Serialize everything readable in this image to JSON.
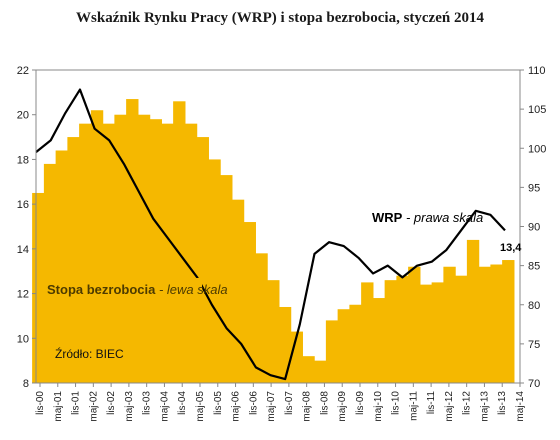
{
  "chart_data": {
    "type": "bar+line",
    "title": "Wskaźnik Rynku Pracy (WRP) i stopa bezrobocia, styczeń 2014",
    "x_labels": [
      "lis-00",
      "maj-01",
      "lis-01",
      "maj-02",
      "lis-02",
      "maj-03",
      "lis-03",
      "maj-04",
      "lis-04",
      "maj-05",
      "lis-05",
      "maj-06",
      "lis-06",
      "maj-07",
      "lis-07",
      "maj-08",
      "lis-08",
      "maj-09",
      "lis-09",
      "maj-10",
      "lis-10",
      "maj-11",
      "lis-11",
      "maj-12",
      "lis-12",
      "maj-13",
      "lis-13",
      "maj-14"
    ],
    "y_left": {
      "min": 8,
      "max": 22,
      "ticks": [
        8,
        10,
        12,
        14,
        16,
        18,
        20,
        22
      ]
    },
    "y_right": {
      "min": 70,
      "max": 110,
      "ticks": [
        70,
        75,
        80,
        85,
        90,
        95,
        100,
        105,
        110
      ]
    },
    "series": [
      {
        "name": "Stopa bezrobocia",
        "axis": "left",
        "kind": "bar",
        "color": "#f5b800",
        "values": [
          16.5,
          17.8,
          18.4,
          19.0,
          19.6,
          20.2,
          19.6,
          20.0,
          20.7,
          20.0,
          19.8,
          19.6,
          20.6,
          19.6,
          19.0,
          18.0,
          17.3,
          16.2,
          15.2,
          13.8,
          12.6,
          11.4,
          10.3,
          9.2,
          9.0,
          10.8,
          11.3,
          11.5,
          12.5,
          11.8,
          12.6,
          12.8,
          13.2,
          12.4,
          12.5,
          13.2,
          12.8,
          14.4,
          13.2,
          13.3,
          13.5
        ]
      },
      {
        "name": "WRP",
        "axis": "right",
        "kind": "line",
        "color": "#000000",
        "values": [
          99.5,
          101,
          104.5,
          107.5,
          102.5,
          101,
          98,
          94.5,
          91,
          88.5,
          86,
          83.5,
          80,
          77,
          75,
          72,
          71,
          70.5,
          77.5,
          86.5,
          88,
          87.5,
          86,
          84,
          85,
          83.5,
          85,
          85.5,
          87,
          89.5,
          92,
          91.5,
          89.5
        ]
      }
    ],
    "annotations": {
      "wrp_bold": "WRP",
      "wrp_italic": " - prawa skala",
      "wrp_last_value": "13,4",
      "bar_label_bold": "Stopa bezrobocia",
      "bar_label_italic": " - lewa skala",
      "source": "Źródło: BIEC"
    },
    "grid": false,
    "legend": "inline labels"
  }
}
